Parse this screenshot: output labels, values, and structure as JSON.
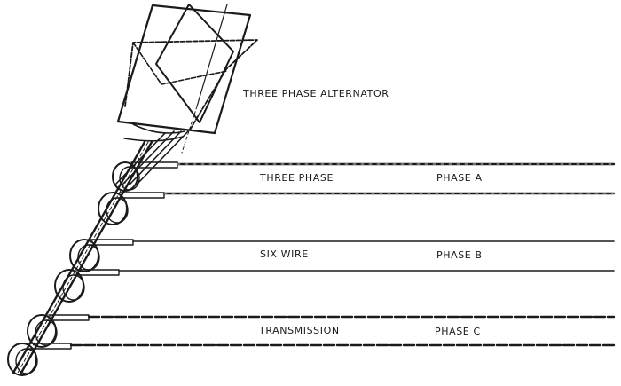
{
  "labels": {
    "alternator": "THREE PHASE ALTERNATOR",
    "caption": [
      "THREE PHASE",
      "SIX WIRE",
      "TRANSMISSION"
    ],
    "phases": [
      "PHASE A",
      "PHASE B",
      "PHASE C"
    ]
  },
  "colors": {
    "ink": "#1a1a1a",
    "background": "#ffffff"
  }
}
